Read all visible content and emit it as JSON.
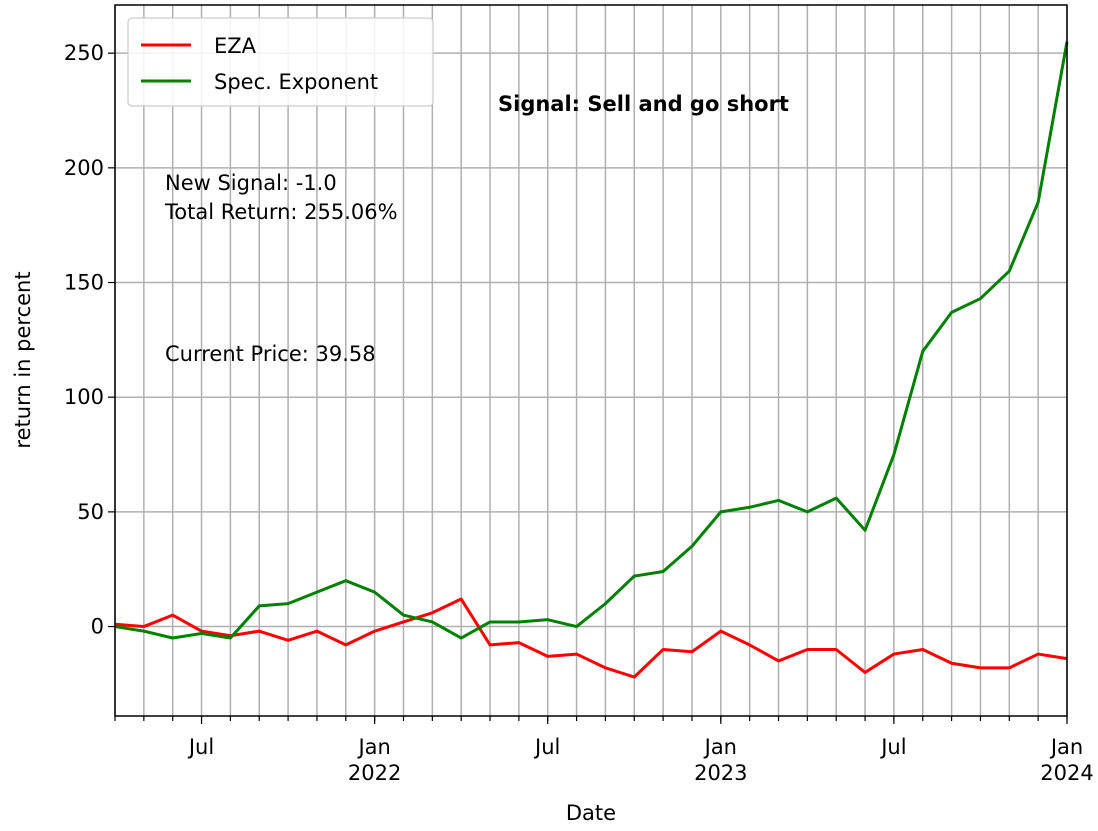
{
  "chart_data": {
    "type": "line",
    "xlabel": "Date",
    "ylabel": "return in percent",
    "annotations": [
      "Signal: Sell and go short",
      "New Signal: -1.0",
      "Total Return: 255.06%",
      "Current Price: 39.58"
    ],
    "x": [
      "2021-04",
      "2021-05",
      "2021-06",
      "2021-07",
      "2021-08",
      "2021-09",
      "2021-10",
      "2021-11",
      "2021-12",
      "2022-01",
      "2022-02",
      "2022-03",
      "2022-04",
      "2022-05",
      "2022-06",
      "2022-07",
      "2022-08",
      "2022-09",
      "2022-10",
      "2022-11",
      "2022-12",
      "2023-01",
      "2023-02",
      "2023-03",
      "2023-04",
      "2023-05",
      "2023-06",
      "2023-07",
      "2023-08",
      "2023-09",
      "2023-10",
      "2023-11",
      "2023-12",
      "2024-01"
    ],
    "series": [
      {
        "name": "EZA",
        "color": "#ff0000",
        "values": [
          1,
          0,
          5,
          -2,
          -4,
          -2,
          -6,
          -2,
          -8,
          -2,
          2,
          6,
          12,
          -8,
          -7,
          -13,
          -12,
          -18,
          -22,
          -10,
          -11,
          -2,
          -8,
          -15,
          -10,
          -10,
          -20,
          -12,
          -10,
          -16,
          -18,
          -18,
          -12,
          -14
        ]
      },
      {
        "name": "Spec. Exponent",
        "color": "#008000",
        "values": [
          0,
          -2,
          -5,
          -3,
          -5,
          9,
          10,
          15,
          20,
          15,
          5,
          2,
          -5,
          2,
          2,
          3,
          0,
          10,
          22,
          24,
          35,
          50,
          52,
          55,
          50,
          56,
          42,
          75,
          120,
          137,
          143,
          155,
          185,
          255
        ]
      }
    ],
    "xlim": [
      "2021-04",
      "2024-01"
    ],
    "xticks": [
      {
        "value": "2021-07",
        "label": "Jul"
      },
      {
        "value": "2022-01",
        "label": "Jan\n2022"
      },
      {
        "value": "2022-07",
        "label": "Jul"
      },
      {
        "value": "2023-01",
        "label": "Jan\n2023"
      },
      {
        "value": "2023-07",
        "label": "Jul"
      },
      {
        "value": "2024-01",
        "label": "Jan\n2024"
      }
    ],
    "ylim": [
      -39,
      271
    ],
    "yticks": [
      0,
      50,
      100,
      150,
      200,
      250
    ],
    "grid": true,
    "legend": "upper left"
  }
}
